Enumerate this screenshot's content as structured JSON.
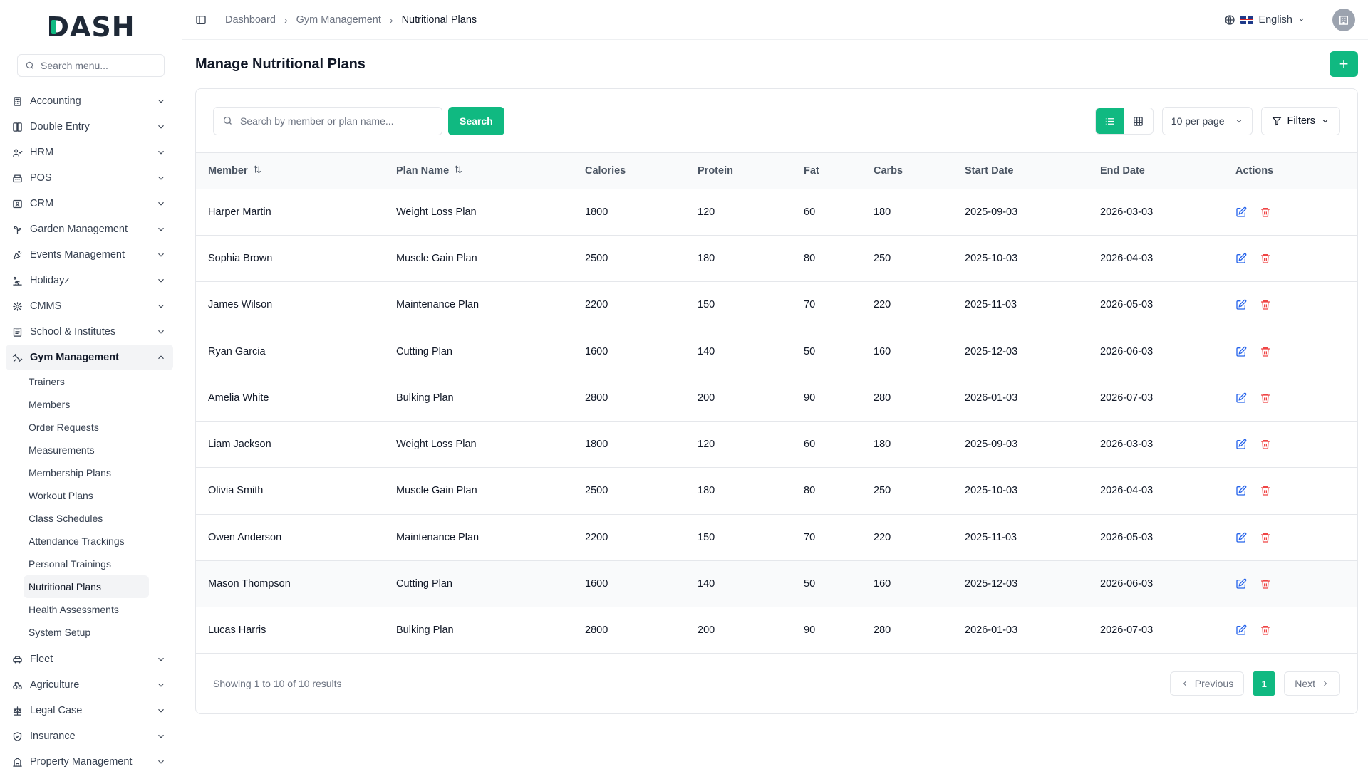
{
  "app": {
    "logo": "DASH"
  },
  "sidebar": {
    "search_placeholder": "Search menu...",
    "items": [
      {
        "label": "Accounting",
        "icon": "calculator-icon"
      },
      {
        "label": "Double Entry",
        "icon": "book-icon"
      },
      {
        "label": "HRM",
        "icon": "users-icon"
      },
      {
        "label": "POS",
        "icon": "register-icon"
      },
      {
        "label": "CRM",
        "icon": "contact-icon"
      },
      {
        "label": "Garden Management",
        "icon": "plant-icon"
      },
      {
        "label": "Events Management",
        "icon": "party-icon"
      },
      {
        "label": "Holidayz",
        "icon": "holiday-icon"
      },
      {
        "label": "CMMS",
        "icon": "gear-icon"
      },
      {
        "label": "School & Institutes",
        "icon": "school-icon"
      },
      {
        "label": "Gym Management",
        "icon": "dumbbell-icon"
      }
    ],
    "gym_submenu": [
      "Trainers",
      "Members",
      "Order Requests",
      "Measurements",
      "Membership Plans",
      "Workout Plans",
      "Class Schedules",
      "Attendance Trackings",
      "Personal Trainings",
      "Nutritional Plans",
      "Health Assessments",
      "System Setup"
    ],
    "items_after": [
      {
        "label": "Fleet",
        "icon": "car-icon"
      },
      {
        "label": "Agriculture",
        "icon": "tractor-icon"
      },
      {
        "label": "Legal Case",
        "icon": "scale-icon"
      },
      {
        "label": "Insurance",
        "icon": "shield-icon"
      },
      {
        "label": "Property Management",
        "icon": "building-icon"
      }
    ]
  },
  "topbar": {
    "breadcrumb": [
      "Dashboard",
      "Gym Management",
      "Nutritional Plans"
    ],
    "language": "English"
  },
  "page": {
    "title": "Manage Nutritional Plans",
    "search_placeholder": "Search by member or plan name...",
    "search_button": "Search",
    "per_page": "10 per page",
    "filters_label": "Filters"
  },
  "table": {
    "columns": [
      "Member",
      "Plan Name",
      "Calories",
      "Protein",
      "Fat",
      "Carbs",
      "Start Date",
      "End Date",
      "Actions"
    ],
    "rows": [
      [
        "Harper Martin",
        "Weight Loss Plan",
        "1800",
        "120",
        "60",
        "180",
        "2025-09-03",
        "2026-03-03"
      ],
      [
        "Sophia Brown",
        "Muscle Gain Plan",
        "2500",
        "180",
        "80",
        "250",
        "2025-10-03",
        "2026-04-03"
      ],
      [
        "James Wilson",
        "Maintenance Plan",
        "2200",
        "150",
        "70",
        "220",
        "2025-11-03",
        "2026-05-03"
      ],
      [
        "Ryan Garcia",
        "Cutting Plan",
        "1600",
        "140",
        "50",
        "160",
        "2025-12-03",
        "2026-06-03"
      ],
      [
        "Amelia White",
        "Bulking Plan",
        "2800",
        "200",
        "90",
        "280",
        "2026-01-03",
        "2026-07-03"
      ],
      [
        "Liam Jackson",
        "Weight Loss Plan",
        "1800",
        "120",
        "60",
        "180",
        "2025-09-03",
        "2026-03-03"
      ],
      [
        "Olivia Smith",
        "Muscle Gain Plan",
        "2500",
        "180",
        "80",
        "250",
        "2025-10-03",
        "2026-04-03"
      ],
      [
        "Owen Anderson",
        "Maintenance Plan",
        "2200",
        "150",
        "70",
        "220",
        "2025-11-03",
        "2026-05-03"
      ],
      [
        "Mason Thompson",
        "Cutting Plan",
        "1600",
        "140",
        "50",
        "160",
        "2025-12-03",
        "2026-06-03"
      ],
      [
        "Lucas Harris",
        "Bulking Plan",
        "2800",
        "200",
        "90",
        "280",
        "2026-01-03",
        "2026-07-03"
      ]
    ]
  },
  "footer": {
    "info": "Showing 1 to 10 of 10 results",
    "previous": "Previous",
    "page": "1",
    "next": "Next"
  },
  "colors": {
    "accent": "#10b981",
    "edit": "#2563eb",
    "delete": "#ef4444"
  }
}
